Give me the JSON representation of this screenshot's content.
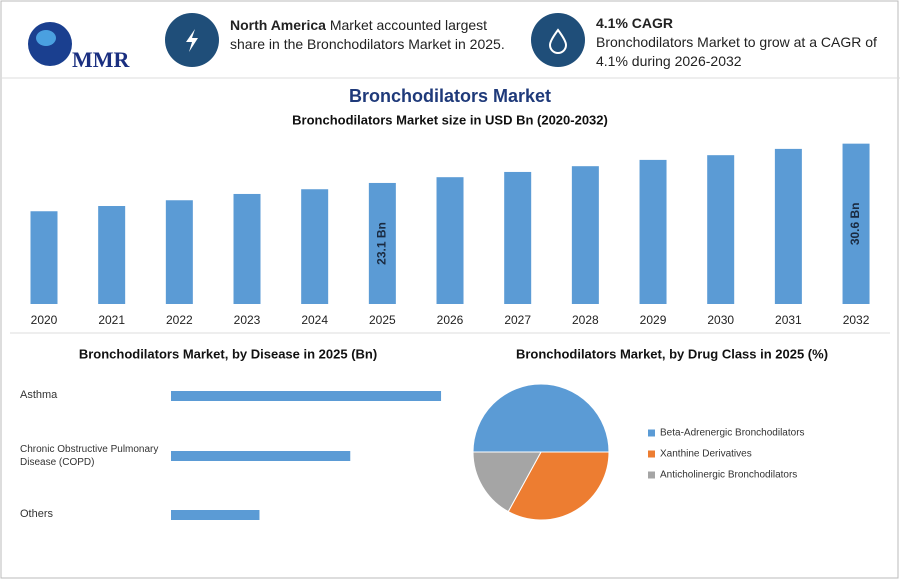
{
  "header": {
    "logo": "MMR",
    "info1": {
      "bold": "North America",
      "text": "Market accounted largest share in the Bronchodilators Market in 2025."
    },
    "info2": {
      "bold": "4.1% CAGR",
      "text": "Bronchodilators Market to grow at a CAGR of 4.1% during 2026-2032"
    }
  },
  "chart_data": [
    {
      "type": "bar",
      "title": "Bronchodilators Market",
      "subtitle": "Bronchodilators Market size in USD Bn (2020-2032)",
      "categories": [
        "2020",
        "2021",
        "2022",
        "2023",
        "2024",
        "2025",
        "2026",
        "2027",
        "2028",
        "2029",
        "2030",
        "2031",
        "2032"
      ],
      "values": [
        17.7,
        18.7,
        19.8,
        21.0,
        21.9,
        23.1,
        24.2,
        25.2,
        26.3,
        27.5,
        28.4,
        29.6,
        30.6
      ],
      "value_labels": [
        null,
        null,
        null,
        null,
        null,
        "23.1 Bn",
        null,
        null,
        null,
        null,
        null,
        null,
        "30.6 Bn"
      ],
      "color": "#5b9bd5"
    },
    {
      "type": "bar",
      "horizontal": true,
      "title": "Bronchodilators Market, by Disease in 2025 (Bn)",
      "categories": [
        "Asthma",
        "Chronic Obstructive Pulmonary Disease (COPD)",
        "Others"
      ],
      "values": [
        11.6,
        7.7,
        3.8
      ],
      "color": "#5b9bd5"
    },
    {
      "type": "pie",
      "title": "Bronchodilators Market, by Drug Class in 2025 (%)",
      "categories": [
        "Beta-Adrenergic Bronchodilators",
        "Xanthine Derivatives",
        "Anticholinergic Bronchodilators"
      ],
      "values": [
        50,
        33,
        17
      ],
      "colors": [
        "#5b9bd5",
        "#ed7d31",
        "#a5a5a5"
      ]
    }
  ]
}
